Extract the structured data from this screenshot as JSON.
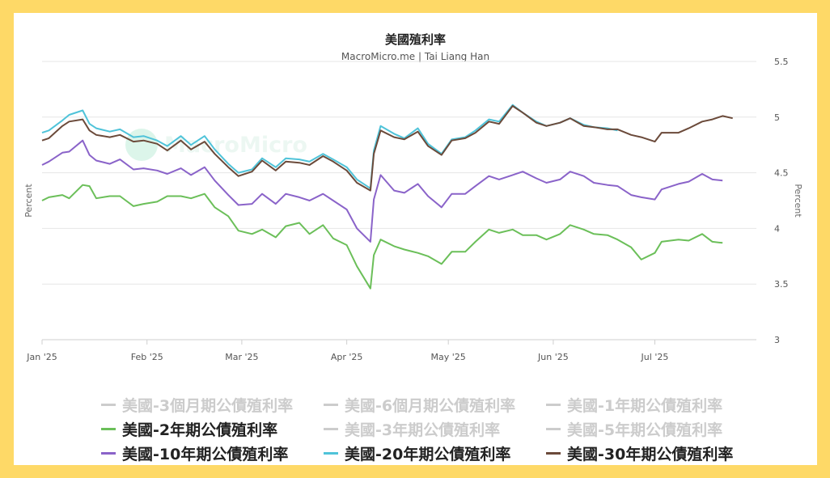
{
  "chart_data": {
    "type": "line",
    "title": "美國殖利率",
    "subtitle": "MacroMicro.me | Tai Liang Han",
    "ylabel_left": "Percent",
    "ylabel_right": "Percent",
    "ylim": [
      3,
      5.5
    ],
    "yticks": [
      "3",
      "3.5",
      "4",
      "4.5",
      "5",
      "5.5"
    ],
    "yticks_values": [
      3,
      3.5,
      4,
      4.5,
      5,
      5.5
    ],
    "xlim": [
      "2025-01-01",
      "2025-07-31"
    ],
    "xticks": [
      {
        "label": "Jan '25",
        "date": "2025-01-01"
      },
      {
        "label": "Feb '25",
        "date": "2025-02-01"
      },
      {
        "label": "Mar '25",
        "date": "2025-03-01"
      },
      {
        "label": "Apr '25",
        "date": "2025-04-01"
      },
      {
        "label": "May '25",
        "date": "2025-05-01"
      },
      {
        "label": "Jun '25",
        "date": "2025-06-01"
      },
      {
        "label": "Jul '25",
        "date": "2025-07-01"
      }
    ],
    "grid": true,
    "legend_position": "bottom",
    "series": [
      {
        "name": "美國-3個月期公債殖利率",
        "color": "#cccccc",
        "visible": false,
        "points": []
      },
      {
        "name": "美國-6個月期公債殖利率",
        "color": "#cccccc",
        "visible": false,
        "points": []
      },
      {
        "name": "美國-1年期公債殖利率",
        "color": "#cccccc",
        "visible": false,
        "points": []
      },
      {
        "name": "美國-2年期公債殖利率",
        "color": "#6bbf59",
        "visible": true,
        "points": [
          [
            "2025-01-01",
            4.25
          ],
          [
            "2025-01-03",
            4.28
          ],
          [
            "2025-01-07",
            4.3
          ],
          [
            "2025-01-09",
            4.27
          ],
          [
            "2025-01-13",
            4.39
          ],
          [
            "2025-01-15",
            4.38
          ],
          [
            "2025-01-17",
            4.27
          ],
          [
            "2025-01-21",
            4.29
          ],
          [
            "2025-01-24",
            4.29
          ],
          [
            "2025-01-28",
            4.2
          ],
          [
            "2025-01-31",
            4.22
          ],
          [
            "2025-02-04",
            4.24
          ],
          [
            "2025-02-07",
            4.29
          ],
          [
            "2025-02-11",
            4.29
          ],
          [
            "2025-02-14",
            4.27
          ],
          [
            "2025-02-18",
            4.31
          ],
          [
            "2025-02-21",
            4.19
          ],
          [
            "2025-02-25",
            4.11
          ],
          [
            "2025-02-28",
            3.98
          ],
          [
            "2025-03-04",
            3.95
          ],
          [
            "2025-03-07",
            3.99
          ],
          [
            "2025-03-11",
            3.92
          ],
          [
            "2025-03-14",
            4.02
          ],
          [
            "2025-03-18",
            4.05
          ],
          [
            "2025-03-21",
            3.95
          ],
          [
            "2025-03-25",
            4.03
          ],
          [
            "2025-03-28",
            3.91
          ],
          [
            "2025-04-01",
            3.85
          ],
          [
            "2025-04-04",
            3.66
          ],
          [
            "2025-04-08",
            3.46
          ],
          [
            "2025-04-09",
            3.76
          ],
          [
            "2025-04-11",
            3.9
          ],
          [
            "2025-04-15",
            3.84
          ],
          [
            "2025-04-18",
            3.81
          ],
          [
            "2025-04-22",
            3.78
          ],
          [
            "2025-04-25",
            3.75
          ],
          [
            "2025-04-29",
            3.68
          ],
          [
            "2025-05-02",
            3.79
          ],
          [
            "2025-05-06",
            3.79
          ],
          [
            "2025-05-09",
            3.88
          ],
          [
            "2025-05-13",
            3.99
          ],
          [
            "2025-05-16",
            3.96
          ],
          [
            "2025-05-20",
            3.99
          ],
          [
            "2025-05-23",
            3.94
          ],
          [
            "2025-05-27",
            3.94
          ],
          [
            "2025-05-30",
            3.9
          ],
          [
            "2025-06-03",
            3.95
          ],
          [
            "2025-06-06",
            4.03
          ],
          [
            "2025-06-10",
            3.99
          ],
          [
            "2025-06-13",
            3.95
          ],
          [
            "2025-06-17",
            3.94
          ],
          [
            "2025-06-20",
            3.9
          ],
          [
            "2025-06-24",
            3.83
          ],
          [
            "2025-06-27",
            3.72
          ],
          [
            "2025-07-01",
            3.78
          ],
          [
            "2025-07-03",
            3.88
          ],
          [
            "2025-07-08",
            3.9
          ],
          [
            "2025-07-11",
            3.89
          ],
          [
            "2025-07-15",
            3.95
          ],
          [
            "2025-07-18",
            3.88
          ],
          [
            "2025-07-21",
            3.87
          ]
        ]
      },
      {
        "name": "美國-3年期公債殖利率",
        "color": "#cccccc",
        "visible": false,
        "points": []
      },
      {
        "name": "美國-5年期公債殖利率",
        "color": "#cccccc",
        "visible": false,
        "points": []
      },
      {
        "name": "美國-10年期公債殖利率",
        "color": "#8a63c9",
        "visible": true,
        "points": [
          [
            "2025-01-01",
            4.57
          ],
          [
            "2025-01-03",
            4.6
          ],
          [
            "2025-01-07",
            4.68
          ],
          [
            "2025-01-09",
            4.69
          ],
          [
            "2025-01-13",
            4.79
          ],
          [
            "2025-01-15",
            4.66
          ],
          [
            "2025-01-17",
            4.61
          ],
          [
            "2025-01-21",
            4.58
          ],
          [
            "2025-01-24",
            4.62
          ],
          [
            "2025-01-28",
            4.53
          ],
          [
            "2025-01-31",
            4.54
          ],
          [
            "2025-02-04",
            4.52
          ],
          [
            "2025-02-07",
            4.49
          ],
          [
            "2025-02-11",
            4.54
          ],
          [
            "2025-02-14",
            4.48
          ],
          [
            "2025-02-18",
            4.55
          ],
          [
            "2025-02-21",
            4.43
          ],
          [
            "2025-02-25",
            4.3
          ],
          [
            "2025-02-28",
            4.21
          ],
          [
            "2025-03-04",
            4.22
          ],
          [
            "2025-03-07",
            4.31
          ],
          [
            "2025-03-11",
            4.22
          ],
          [
            "2025-03-14",
            4.31
          ],
          [
            "2025-03-18",
            4.28
          ],
          [
            "2025-03-21",
            4.25
          ],
          [
            "2025-03-25",
            4.31
          ],
          [
            "2025-03-28",
            4.25
          ],
          [
            "2025-04-01",
            4.17
          ],
          [
            "2025-04-04",
            4.0
          ],
          [
            "2025-04-08",
            3.88
          ],
          [
            "2025-04-09",
            4.26
          ],
          [
            "2025-04-11",
            4.48
          ],
          [
            "2025-04-15",
            4.34
          ],
          [
            "2025-04-18",
            4.32
          ],
          [
            "2025-04-22",
            4.4
          ],
          [
            "2025-04-25",
            4.29
          ],
          [
            "2025-04-29",
            4.19
          ],
          [
            "2025-05-02",
            4.31
          ],
          [
            "2025-05-06",
            4.31
          ],
          [
            "2025-05-09",
            4.38
          ],
          [
            "2025-05-13",
            4.47
          ],
          [
            "2025-05-16",
            4.44
          ],
          [
            "2025-05-20",
            4.48
          ],
          [
            "2025-05-23",
            4.51
          ],
          [
            "2025-05-27",
            4.45
          ],
          [
            "2025-05-30",
            4.41
          ],
          [
            "2025-06-03",
            4.44
          ],
          [
            "2025-06-06",
            4.51
          ],
          [
            "2025-06-10",
            4.47
          ],
          [
            "2025-06-13",
            4.41
          ],
          [
            "2025-06-17",
            4.39
          ],
          [
            "2025-06-20",
            4.38
          ],
          [
            "2025-06-24",
            4.3
          ],
          [
            "2025-06-27",
            4.28
          ],
          [
            "2025-07-01",
            4.26
          ],
          [
            "2025-07-03",
            4.35
          ],
          [
            "2025-07-08",
            4.4
          ],
          [
            "2025-07-11",
            4.42
          ],
          [
            "2025-07-15",
            4.49
          ],
          [
            "2025-07-18",
            4.44
          ],
          [
            "2025-07-21",
            4.43
          ]
        ]
      },
      {
        "name": "美國-20年期公債殖利率",
        "color": "#4fc3d9",
        "visible": true,
        "points": [
          [
            "2025-01-01",
            4.86
          ],
          [
            "2025-01-03",
            4.88
          ],
          [
            "2025-01-07",
            4.97
          ],
          [
            "2025-01-09",
            5.02
          ],
          [
            "2025-01-13",
            5.06
          ],
          [
            "2025-01-15",
            4.94
          ],
          [
            "2025-01-17",
            4.9
          ],
          [
            "2025-01-21",
            4.87
          ],
          [
            "2025-01-24",
            4.89
          ],
          [
            "2025-01-28",
            4.82
          ],
          [
            "2025-01-31",
            4.83
          ],
          [
            "2025-02-04",
            4.79
          ],
          [
            "2025-02-07",
            4.74
          ],
          [
            "2025-02-11",
            4.83
          ],
          [
            "2025-02-14",
            4.75
          ],
          [
            "2025-02-18",
            4.83
          ],
          [
            "2025-02-21",
            4.71
          ],
          [
            "2025-02-25",
            4.58
          ],
          [
            "2025-02-28",
            4.5
          ],
          [
            "2025-03-04",
            4.53
          ],
          [
            "2025-03-07",
            4.63
          ],
          [
            "2025-03-11",
            4.55
          ],
          [
            "2025-03-14",
            4.63
          ],
          [
            "2025-03-18",
            4.62
          ],
          [
            "2025-03-21",
            4.6
          ],
          [
            "2025-03-25",
            4.67
          ],
          [
            "2025-03-28",
            4.62
          ],
          [
            "2025-04-01",
            4.55
          ],
          [
            "2025-04-04",
            4.44
          ],
          [
            "2025-04-08",
            4.36
          ],
          [
            "2025-04-09",
            4.7
          ],
          [
            "2025-04-11",
            4.92
          ],
          [
            "2025-04-15",
            4.85
          ],
          [
            "2025-04-18",
            4.81
          ],
          [
            "2025-04-22",
            4.9
          ],
          [
            "2025-04-25",
            4.76
          ],
          [
            "2025-04-29",
            4.67
          ],
          [
            "2025-05-02",
            4.8
          ],
          [
            "2025-05-06",
            4.82
          ],
          [
            "2025-05-09",
            4.88
          ],
          [
            "2025-05-13",
            4.98
          ],
          [
            "2025-05-16",
            4.96
          ],
          [
            "2025-05-20",
            5.11
          ],
          [
            "2025-05-23",
            5.04
          ],
          [
            "2025-05-27",
            4.96
          ],
          [
            "2025-05-30",
            4.92
          ],
          [
            "2025-06-03",
            4.95
          ],
          [
            "2025-06-06",
            4.99
          ],
          [
            "2025-06-10",
            4.93
          ],
          [
            "2025-06-13",
            4.91
          ],
          [
            "2025-06-17",
            4.9
          ],
          [
            "2025-06-20",
            4.88
          ]
        ]
      },
      {
        "name": "美國-30年期公債殖利率",
        "color": "#6b4a3a",
        "visible": true,
        "points": [
          [
            "2025-01-01",
            4.79
          ],
          [
            "2025-01-03",
            4.81
          ],
          [
            "2025-01-07",
            4.92
          ],
          [
            "2025-01-09",
            4.96
          ],
          [
            "2025-01-13",
            4.98
          ],
          [
            "2025-01-15",
            4.88
          ],
          [
            "2025-01-17",
            4.84
          ],
          [
            "2025-01-21",
            4.82
          ],
          [
            "2025-01-24",
            4.84
          ],
          [
            "2025-01-28",
            4.78
          ],
          [
            "2025-01-31",
            4.79
          ],
          [
            "2025-02-04",
            4.76
          ],
          [
            "2025-02-07",
            4.7
          ],
          [
            "2025-02-11",
            4.79
          ],
          [
            "2025-02-14",
            4.71
          ],
          [
            "2025-02-18",
            4.78
          ],
          [
            "2025-02-21",
            4.67
          ],
          [
            "2025-02-25",
            4.55
          ],
          [
            "2025-02-28",
            4.47
          ],
          [
            "2025-03-04",
            4.51
          ],
          [
            "2025-03-07",
            4.61
          ],
          [
            "2025-03-11",
            4.52
          ],
          [
            "2025-03-14",
            4.6
          ],
          [
            "2025-03-18",
            4.59
          ],
          [
            "2025-03-21",
            4.57
          ],
          [
            "2025-03-25",
            4.65
          ],
          [
            "2025-03-28",
            4.6
          ],
          [
            "2025-04-01",
            4.52
          ],
          [
            "2025-04-04",
            4.41
          ],
          [
            "2025-04-08",
            4.34
          ],
          [
            "2025-04-09",
            4.67
          ],
          [
            "2025-04-11",
            4.88
          ],
          [
            "2025-04-15",
            4.82
          ],
          [
            "2025-04-18",
            4.8
          ],
          [
            "2025-04-22",
            4.87
          ],
          [
            "2025-04-25",
            4.74
          ],
          [
            "2025-04-29",
            4.66
          ],
          [
            "2025-05-02",
            4.79
          ],
          [
            "2025-05-06",
            4.81
          ],
          [
            "2025-05-09",
            4.86
          ],
          [
            "2025-05-13",
            4.96
          ],
          [
            "2025-05-16",
            4.94
          ],
          [
            "2025-05-20",
            5.1
          ],
          [
            "2025-05-23",
            5.04
          ],
          [
            "2025-05-27",
            4.95
          ],
          [
            "2025-05-30",
            4.92
          ],
          [
            "2025-06-03",
            4.95
          ],
          [
            "2025-06-06",
            4.99
          ],
          [
            "2025-06-10",
            4.92
          ],
          [
            "2025-06-13",
            4.91
          ],
          [
            "2025-06-17",
            4.89
          ],
          [
            "2025-06-20",
            4.89
          ],
          [
            "2025-06-24",
            4.84
          ],
          [
            "2025-06-27",
            4.82
          ],
          [
            "2025-07-01",
            4.78
          ],
          [
            "2025-07-03",
            4.86
          ],
          [
            "2025-07-08",
            4.86
          ],
          [
            "2025-07-11",
            4.9
          ],
          [
            "2025-07-15",
            4.96
          ],
          [
            "2025-07-18",
            4.98
          ],
          [
            "2025-07-21",
            5.01
          ],
          [
            "2025-07-24",
            4.99
          ]
        ]
      }
    ]
  },
  "legend": {
    "items": [
      {
        "label": "美國-3個月期公債殖利率",
        "color": "#cccccc",
        "active": false
      },
      {
        "label": "美國-6個月期公債殖利率",
        "color": "#cccccc",
        "active": false
      },
      {
        "label": "美國-1年期公債殖利率",
        "color": "#cccccc",
        "active": false
      },
      {
        "label": "美國-2年期公債殖利率",
        "color": "#6bbf59",
        "active": true
      },
      {
        "label": "美國-3年期公債殖利率",
        "color": "#cccccc",
        "active": false
      },
      {
        "label": "美國-5年期公債殖利率",
        "color": "#cccccc",
        "active": false
      },
      {
        "label": "美國-10年期公債殖利率",
        "color": "#8a63c9",
        "active": true
      },
      {
        "label": "美國-20年期公債殖利率",
        "color": "#4fc3d9",
        "active": true
      },
      {
        "label": "美國-30年期公債殖利率",
        "color": "#6b4a3a",
        "active": true
      }
    ]
  },
  "watermark": {
    "text": "MacroMicro",
    "icon": "macromicro-logo-icon"
  },
  "colors": {
    "page_background": "#fed967",
    "card_background": "#ffffff",
    "grid": "#e6e6e6"
  }
}
